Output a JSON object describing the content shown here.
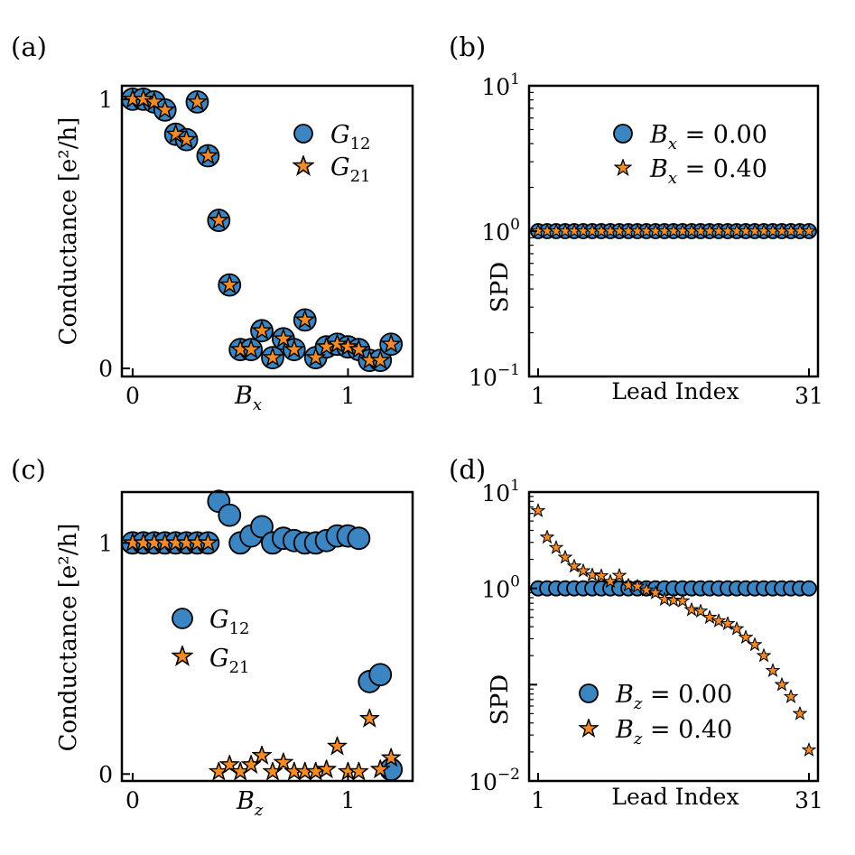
{
  "chart_data": [
    {
      "panel": "a",
      "panel_label": "(a)",
      "type": "scatter",
      "xlabel_base": "B",
      "xlabel_sub": "x",
      "ylabel": "Conductance [e²/h]",
      "xlim": [
        -0.05,
        1.3
      ],
      "ylim": [
        -0.03,
        1.05
      ],
      "xticks": [
        {
          "value": 0,
          "label": "0"
        },
        {
          "value": 1,
          "label": "1"
        }
      ],
      "yticks": [
        {
          "value": 0,
          "label": "0"
        },
        {
          "value": 1,
          "label": "1"
        }
      ],
      "x": [
        0.0,
        0.05,
        0.1,
        0.15,
        0.2,
        0.25,
        0.3,
        0.35,
        0.4,
        0.45,
        0.5,
        0.55,
        0.6,
        0.65,
        0.7,
        0.75,
        0.8,
        0.85,
        0.9,
        0.95,
        1.0,
        1.05,
        1.1,
        1.15,
        1.2
      ],
      "series": [
        {
          "name": "G12",
          "label_base": "G",
          "label_sub": "12",
          "marker": "circle",
          "color": "#3b86c2",
          "values": [
            1.0,
            1.0,
            0.99,
            0.96,
            0.87,
            0.85,
            0.99,
            0.79,
            0.55,
            0.31,
            0.07,
            0.07,
            0.14,
            0.04,
            0.11,
            0.07,
            0.18,
            0.04,
            0.08,
            0.09,
            0.08,
            0.07,
            0.03,
            0.03,
            0.09
          ]
        },
        {
          "name": "G21",
          "label_base": "G",
          "label_sub": "21",
          "marker": "star",
          "color": "#f58b26",
          "values": [
            1.0,
            1.0,
            0.99,
            0.96,
            0.87,
            0.85,
            0.99,
            0.79,
            0.55,
            0.31,
            0.07,
            0.07,
            0.14,
            0.04,
            0.11,
            0.07,
            0.18,
            0.04,
            0.08,
            0.09,
            0.08,
            0.07,
            0.03,
            0.03,
            0.09
          ]
        }
      ],
      "legend_position": "upper-right"
    },
    {
      "panel": "b",
      "panel_label": "(b)",
      "type": "scatter",
      "yscale": "log",
      "xlabel": "Lead Index",
      "ylabel": "SPD",
      "xlim": [
        0,
        32
      ],
      "ylim_exp": [
        -1,
        1
      ],
      "xticks": [
        {
          "value": 1,
          "label": "1"
        },
        {
          "value": 31,
          "label": "31"
        }
      ],
      "yticks_exp": [
        -1,
        0,
        1
      ],
      "x": [
        1,
        2,
        3,
        4,
        5,
        6,
        7,
        8,
        9,
        10,
        11,
        12,
        13,
        14,
        15,
        16,
        17,
        18,
        19,
        20,
        21,
        22,
        23,
        24,
        25,
        26,
        27,
        28,
        29,
        30,
        31
      ],
      "series": [
        {
          "name": "Bx = 0.00",
          "label_base": "B",
          "label_sub": "x",
          "label_value": " = 0.00",
          "marker": "circle",
          "color": "#3b86c2",
          "values": [
            1,
            1,
            1,
            1,
            1,
            1,
            1,
            1,
            1,
            1,
            1,
            1,
            1,
            1,
            1,
            1,
            1,
            1,
            1,
            1,
            1,
            1,
            1,
            1,
            1,
            1,
            1,
            1,
            1,
            1,
            1
          ]
        },
        {
          "name": "Bx = 0.40",
          "label_base": "B",
          "label_sub": "x",
          "label_value": " = 0.40",
          "marker": "star",
          "color": "#f58b26",
          "values": [
            1,
            1,
            1,
            1,
            1,
            1,
            1,
            1,
            1,
            1,
            1,
            1,
            1,
            1,
            1,
            1,
            1,
            1,
            1,
            1,
            1,
            1,
            1,
            1,
            1,
            1,
            1,
            1,
            1,
            1,
            1
          ]
        }
      ],
      "legend_position": "upper-right"
    },
    {
      "panel": "c",
      "panel_label": "(c)",
      "type": "scatter",
      "xlabel_base": "B",
      "xlabel_sub": "z",
      "ylabel": "Conductance [e²/h]",
      "xlim": [
        -0.05,
        1.3
      ],
      "ylim": [
        -0.03,
        1.22
      ],
      "xticks": [
        {
          "value": 0,
          "label": "0"
        },
        {
          "value": 1,
          "label": "1"
        }
      ],
      "yticks": [
        {
          "value": 0,
          "label": "0"
        },
        {
          "value": 1,
          "label": "1"
        }
      ],
      "x": [
        0.0,
        0.05,
        0.1,
        0.15,
        0.2,
        0.25,
        0.3,
        0.35,
        0.4,
        0.45,
        0.5,
        0.55,
        0.6,
        0.65,
        0.7,
        0.75,
        0.8,
        0.85,
        0.9,
        0.95,
        1.0,
        1.05,
        1.1,
        1.15,
        1.2
      ],
      "series": [
        {
          "name": "G12",
          "label_base": "G",
          "label_sub": "12",
          "marker": "circle",
          "color": "#3b86c2",
          "values": [
            1.0,
            1.0,
            1.0,
            1.0,
            1.0,
            1.0,
            1.0,
            1.0,
            1.18,
            1.12,
            1.0,
            1.03,
            1.07,
            1.0,
            1.02,
            1.01,
            1.0,
            1.0,
            1.01,
            1.03,
            1.03,
            1.02,
            0.4,
            0.43,
            0.02
          ]
        },
        {
          "name": "G21",
          "label_base": "G",
          "label_sub": "21",
          "marker": "star",
          "color": "#f58b26",
          "values": [
            1.0,
            1.0,
            1.0,
            1.0,
            1.0,
            1.0,
            1.0,
            1.0,
            0.01,
            0.04,
            0.01,
            0.04,
            0.08,
            0.01,
            0.05,
            0.01,
            0.01,
            0.01,
            0.02,
            0.12,
            0.01,
            0.01,
            0.24,
            0.02,
            0.07
          ]
        }
      ],
      "legend_position": "center-left"
    },
    {
      "panel": "d",
      "panel_label": "(d)",
      "type": "scatter",
      "yscale": "log",
      "xlabel": "Lead Index",
      "ylabel": "SPD",
      "xlim": [
        0,
        32
      ],
      "ylim_exp": [
        -2,
        1
      ],
      "xticks": [
        {
          "value": 1,
          "label": "1"
        },
        {
          "value": 31,
          "label": "31"
        }
      ],
      "yticks_exp": [
        -2,
        0,
        1
      ],
      "x": [
        1,
        2,
        3,
        4,
        5,
        6,
        7,
        8,
        9,
        10,
        11,
        12,
        13,
        14,
        15,
        16,
        17,
        18,
        19,
        20,
        21,
        22,
        23,
        24,
        25,
        26,
        27,
        28,
        29,
        30,
        31
      ],
      "series": [
        {
          "name": "Bz = 0.00",
          "label_base": "B",
          "label_sub": "z",
          "label_value": " = 0.00",
          "marker": "circle",
          "color": "#3b86c2",
          "values": [
            1,
            1,
            1,
            1,
            1,
            1,
            1,
            1,
            1,
            1,
            1,
            1,
            1,
            1,
            1,
            1,
            1,
            1,
            1,
            1,
            1,
            1,
            1,
            1,
            1,
            1,
            1,
            1,
            1,
            1,
            1
          ]
        },
        {
          "name": "Bz = 0.40",
          "label_base": "B",
          "label_sub": "z",
          "label_value": " = 0.40",
          "marker": "star",
          "color": "#f58b26",
          "values": [
            6.4,
            3.4,
            2.65,
            2.1,
            1.7,
            1.52,
            1.38,
            1.35,
            1.18,
            1.36,
            1.08,
            1.05,
            0.96,
            0.9,
            0.77,
            0.75,
            0.74,
            0.6,
            0.58,
            0.5,
            0.46,
            0.43,
            0.38,
            0.31,
            0.26,
            0.2,
            0.14,
            0.1,
            0.075,
            0.05,
            0.021
          ]
        }
      ],
      "legend_position": "lower-center"
    }
  ]
}
